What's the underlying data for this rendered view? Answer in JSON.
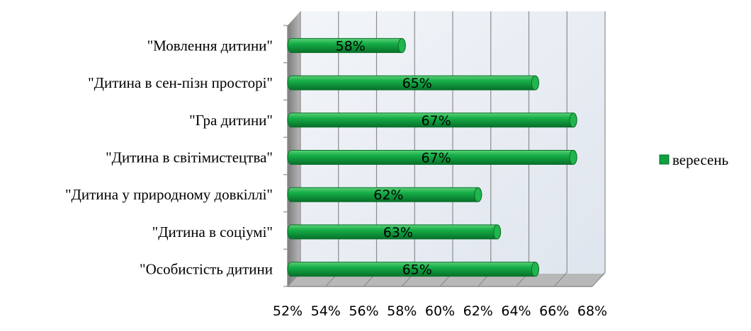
{
  "chart_data": {
    "type": "bar",
    "orientation": "horizontal",
    "style": "3d-cylinder",
    "categories": [
      "\"Мовлення дитини\"",
      "\"Дитина в сен-пізн просторі\"",
      "\"Гра дитини\"",
      "\"Дитина в світімистецтва\"",
      "\"Дитина у природному довкіллі\"",
      "\"Дитина в соціумі\"",
      "\"Особистість дитини"
    ],
    "series": [
      {
        "name": "вересень",
        "values": [
          58,
          65,
          67,
          67,
          62,
          63,
          65
        ],
        "data_labels": [
          "58%",
          "65%",
          "67%",
          "67%",
          "62%",
          "63%",
          "65%"
        ],
        "color": "#0fa040"
      }
    ],
    "xlim": [
      52,
      68
    ],
    "xticks": [
      52,
      54,
      56,
      58,
      60,
      62,
      64,
      66,
      68
    ],
    "xtick_labels": [
      "52%",
      "54%",
      "56%",
      "58%",
      "60%",
      "62%",
      "64%",
      "66%",
      "68%"
    ],
    "grid": true,
    "legend_position": "right"
  }
}
